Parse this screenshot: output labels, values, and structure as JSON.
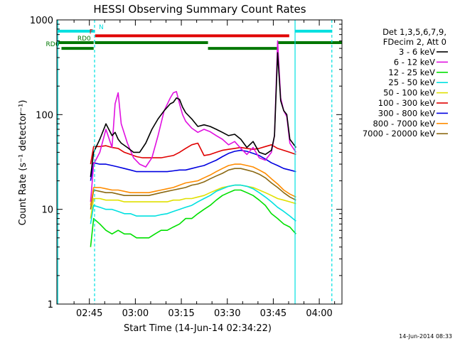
{
  "chart_data": {
    "type": "line",
    "title": "HESSI Observing Summary Count Rates",
    "xlabel": "Start Time (14-Jun-14 02:34:22)",
    "ylabel": "Count Rate (s⁻¹ detector⁻¹)",
    "y_scale": "log",
    "ylim": [
      1,
      1000
    ],
    "xlim_minutes": [
      0,
      93
    ],
    "x_ticks": [
      {
        "label": "02:45",
        "minute": 10.6
      },
      {
        "label": "03:00",
        "minute": 25.6
      },
      {
        "label": "03:15",
        "minute": 40.6
      },
      {
        "label": "03:30",
        "minute": 55.6
      },
      {
        "label": "03:45",
        "minute": 70.6
      },
      {
        "label": "04:00",
        "minute": 85.6
      }
    ],
    "y_ticks": [
      {
        "label": "1",
        "value": 1
      },
      {
        "label": "10",
        "value": 10
      },
      {
        "label": "100",
        "value": 100
      },
      {
        "label": "1000",
        "value": 1000
      }
    ],
    "grid": false,
    "legend_position": "right",
    "legend_header": [
      "Det 1,3,5,6,7,9,",
      "FDecim 2, Att 0"
    ],
    "series": [
      {
        "name": "3 - 6 keV",
        "color": "#000000",
        "x": [
          11,
          12,
          14,
          16,
          18,
          19,
          20,
          21,
          23,
          25,
          27,
          29,
          31,
          33,
          35,
          37,
          38,
          39,
          40,
          41,
          42,
          44,
          46,
          48,
          50,
          52,
          54,
          56,
          58,
          60,
          62,
          64,
          66,
          68,
          70,
          71,
          72,
          73,
          74,
          75,
          76,
          78
        ],
        "y": [
          22,
          40,
          55,
          80,
          60,
          65,
          55,
          50,
          45,
          40,
          40,
          50,
          70,
          90,
          110,
          130,
          135,
          150,
          145,
          120,
          105,
          90,
          75,
          78,
          75,
          70,
          65,
          60,
          62,
          55,
          45,
          52,
          40,
          38,
          42,
          60,
          450,
          140,
          110,
          100,
          55,
          45
        ]
      },
      {
        "name": "6 - 12 keV",
        "color": "#e010e0",
        "x": [
          11,
          12,
          14,
          16,
          18,
          19,
          20,
          21,
          23,
          25,
          27,
          29,
          31,
          33,
          35,
          37,
          38,
          39,
          40,
          41,
          42,
          44,
          46,
          48,
          50,
          52,
          54,
          56,
          58,
          60,
          62,
          64,
          66,
          68,
          70,
          71,
          72,
          73,
          74,
          75,
          76,
          78
        ],
        "y": [
          12,
          30,
          40,
          70,
          45,
          130,
          170,
          80,
          50,
          35,
          30,
          28,
          35,
          60,
          110,
          150,
          170,
          175,
          130,
          100,
          85,
          72,
          65,
          70,
          66,
          60,
          55,
          48,
          52,
          44,
          38,
          45,
          35,
          33,
          40,
          60,
          600,
          150,
          110,
          95,
          50,
          40
        ]
      },
      {
        "name": "12 - 25 keV",
        "color": "#00e000",
        "x": [
          11,
          12,
          14,
          16,
          18,
          20,
          22,
          24,
          26,
          28,
          30,
          32,
          34,
          36,
          38,
          40,
          42,
          44,
          46,
          48,
          50,
          52,
          54,
          56,
          58,
          60,
          62,
          64,
          66,
          68,
          70,
          72,
          74,
          76,
          78
        ],
        "y": [
          4,
          8,
          7,
          6,
          5.5,
          6,
          5.5,
          5.5,
          5,
          5,
          5,
          5.5,
          6,
          6,
          6.5,
          7,
          8,
          8,
          9,
          10,
          11,
          12.5,
          14,
          15,
          16,
          16,
          15,
          14,
          12.5,
          11,
          9,
          8,
          7,
          6.5,
          5.5
        ]
      },
      {
        "name": "25 - 50 keV",
        "color": "#00e0e0",
        "x": [
          11,
          12,
          14,
          16,
          18,
          20,
          22,
          24,
          26,
          28,
          30,
          32,
          34,
          36,
          38,
          40,
          42,
          44,
          46,
          48,
          50,
          52,
          54,
          56,
          58,
          60,
          62,
          64,
          66,
          68,
          70,
          72,
          74,
          76,
          78
        ],
        "y": [
          7,
          11,
          10.5,
          10,
          10,
          9.5,
          9,
          9,
          8.5,
          8.5,
          8.5,
          8.5,
          8.8,
          9,
          9.5,
          10,
          10.5,
          11,
          12,
          13,
          14,
          15.5,
          16.5,
          17.5,
          18,
          18,
          17.5,
          16.5,
          15,
          13.5,
          12,
          10.5,
          9.5,
          8.5,
          7.5
        ]
      },
      {
        "name": "50 - 100 keV",
        "color": "#e0e000",
        "x": [
          11,
          12,
          14,
          16,
          18,
          20,
          22,
          24,
          26,
          28,
          30,
          32,
          34,
          36,
          38,
          40,
          42,
          44,
          46,
          48,
          50,
          52,
          54,
          56,
          58,
          60,
          62,
          64,
          66,
          68,
          70,
          72,
          74,
          76,
          78
        ],
        "y": [
          8,
          13,
          13,
          12.5,
          12.5,
          12.5,
          12,
          12,
          12,
          12,
          12,
          12,
          12,
          12,
          12.5,
          12.5,
          13,
          13,
          13.5,
          14,
          15,
          16,
          17,
          17.5,
          18,
          18,
          17.5,
          17,
          16,
          15,
          14,
          13,
          12.5,
          12,
          11.5
        ]
      },
      {
        "name": "100 - 300 keV",
        "color": "#e00000",
        "x": [
          11,
          12,
          14,
          16,
          18,
          20,
          22,
          24,
          26,
          28,
          30,
          32,
          34,
          36,
          38,
          40,
          42,
          44,
          46,
          48,
          50,
          52,
          54,
          56,
          58,
          60,
          62,
          64,
          66,
          68,
          70,
          72,
          74,
          76,
          78
        ],
        "y": [
          30,
          46,
          46,
          47,
          45,
          44,
          40,
          38,
          36,
          35,
          35,
          35,
          35,
          36,
          37,
          40,
          44,
          48,
          50,
          37,
          38,
          40,
          42,
          43,
          44,
          45,
          44,
          43,
          44,
          46,
          48,
          44,
          42,
          40,
          38
        ]
      },
      {
        "name": "300 - 800 keV",
        "color": "#0000e0",
        "x": [
          11,
          12,
          14,
          16,
          18,
          20,
          22,
          24,
          26,
          28,
          30,
          32,
          34,
          36,
          38,
          40,
          42,
          44,
          46,
          48,
          50,
          52,
          54,
          56,
          58,
          60,
          62,
          64,
          66,
          68,
          70,
          72,
          74,
          76,
          78
        ],
        "y": [
          20,
          31,
          30,
          30,
          29,
          28,
          27,
          26,
          25,
          25,
          25,
          25,
          25,
          25,
          25.5,
          26,
          26,
          27,
          28,
          29,
          31,
          33,
          36,
          39,
          41,
          42,
          41,
          39,
          37,
          34,
          31,
          29,
          27,
          26,
          25
        ]
      },
      {
        "name": "800 - 7000 keV",
        "color": "#ff8c00",
        "x": [
          11,
          12,
          14,
          16,
          18,
          20,
          22,
          24,
          26,
          28,
          30,
          32,
          34,
          36,
          38,
          40,
          42,
          44,
          46,
          48,
          50,
          52,
          54,
          56,
          58,
          60,
          62,
          64,
          66,
          68,
          70,
          72,
          74,
          76,
          78
        ],
        "y": [
          11,
          17,
          17,
          16.5,
          16,
          16,
          15.5,
          15,
          15,
          15,
          15,
          15.5,
          16,
          16.5,
          17,
          18,
          19,
          19.5,
          20,
          21.5,
          23,
          25,
          27,
          29,
          30,
          30,
          29,
          28,
          26,
          24,
          21,
          18.5,
          16,
          14.5,
          13.5
        ]
      },
      {
        "name": "7000 - 20000 keV",
        "color": "#8b6914",
        "x": [
          11,
          12,
          14,
          16,
          18,
          20,
          22,
          24,
          26,
          28,
          30,
          32,
          34,
          36,
          38,
          40,
          42,
          44,
          46,
          48,
          50,
          52,
          54,
          56,
          58,
          60,
          62,
          64,
          66,
          68,
          70,
          72,
          74,
          76,
          78
        ],
        "y": [
          10,
          16,
          15.5,
          15,
          15,
          14.5,
          14,
          14,
          14,
          14,
          14,
          14.5,
          15,
          15.5,
          16,
          16.5,
          17,
          18,
          18.5,
          19.5,
          21,
          22.5,
          24,
          26,
          27,
          27,
          26,
          25,
          23.5,
          21.5,
          19,
          17,
          15,
          13.5,
          12.5
        ]
      }
    ],
    "vertical_markers": [
      {
        "minute": 0.3,
        "color": "#00e0e0",
        "style": "solid"
      },
      {
        "minute": 12.3,
        "color": "#00e0e0",
        "style": "dashed"
      },
      {
        "minute": 77.7,
        "color": "#00e0e0",
        "style": "solid"
      },
      {
        "minute": 89.7,
        "color": "#00e0e0",
        "style": "dashed"
      }
    ],
    "flag_bars": [
      {
        "label": "N",
        "color": "#00e0e0",
        "y_value": 760,
        "segments": [
          [
            0.3,
            12.3
          ],
          [
            77.7,
            89.7
          ]
        ]
      },
      {
        "label": "F",
        "color": "#e00000",
        "y_value": 680,
        "segments": [
          [
            12.5,
            75.8
          ]
        ]
      },
      {
        "label": "RD0",
        "color": "#007700",
        "y_value": 575,
        "segments": [
          [
            0.5,
            12.0
          ],
          [
            12.4,
            49.3
          ],
          [
            72.2,
            93.0
          ]
        ]
      },
      {
        "label": "RD6",
        "color": "#007700",
        "y_value": 500,
        "segments": [
          [
            1.5,
            12.0
          ],
          [
            49.3,
            72.2
          ]
        ]
      }
    ]
  },
  "footer": {
    "timestamp": "14-Jun-2014 08:33"
  }
}
